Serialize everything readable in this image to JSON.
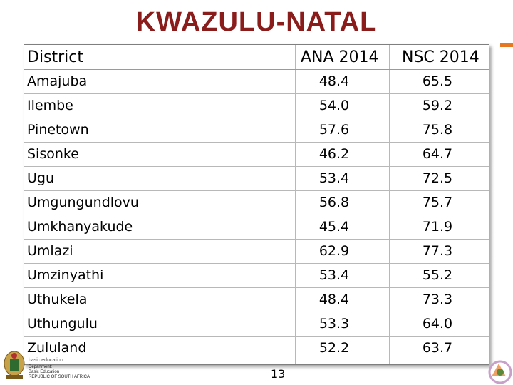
{
  "title": "KWAZULU-NATAL",
  "table": {
    "headers": {
      "district": "District",
      "ana": "ANA 2014",
      "nsc": "NSC 2014"
    },
    "rows": [
      {
        "district": "Amajuba",
        "ana": "48.4",
        "nsc": "65.5"
      },
      {
        "district": "Ilembe",
        "ana": "54.0",
        "nsc": "59.2"
      },
      {
        "district": "Pinetown",
        "ana": "57.6",
        "nsc": "75.8"
      },
      {
        "district": "Sisonke",
        "ana": "46.2",
        "nsc": "64.7"
      },
      {
        "district": "Ugu",
        "ana": "53.4",
        "nsc": "72.5"
      },
      {
        "district": "Umgungundlovu",
        "ana": "56.8",
        "nsc": "75.7"
      },
      {
        "district": "Umkhanyakude",
        "ana": "45.4",
        "nsc": "71.9"
      },
      {
        "district": "Umlazi",
        "ana": "62.9",
        "nsc": "77.3"
      },
      {
        "district": "Umzinyathi",
        "ana": "53.4",
        "nsc": "55.2"
      },
      {
        "district": "Uthukela",
        "ana": "48.4",
        "nsc": "73.3"
      },
      {
        "district": "Uthungulu",
        "ana": "53.3",
        "nsc": "64.0"
      },
      {
        "district": "Zululand",
        "ana": "52.2",
        "nsc": "63.7"
      }
    ]
  },
  "footer": {
    "page_number": "13",
    "logo_lines": [
      "basic education",
      "Department:",
      "Basic Education",
      "REPUBLIC OF SOUTH AFRICA"
    ]
  },
  "colors": {
    "title": "#8a1c1c",
    "accent": "#e87722"
  }
}
